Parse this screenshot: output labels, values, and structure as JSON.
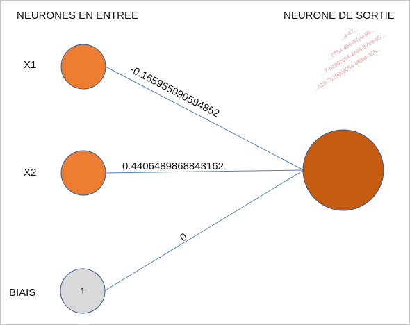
{
  "headings": {
    "inputs": "NEURONES EN ENTREE",
    "output": "NEURONE DE SORTIE"
  },
  "inputs": [
    {
      "label": "X1",
      "value": ""
    },
    {
      "label": "X2",
      "value": ""
    },
    {
      "label": "BIAIS",
      "value": "1"
    }
  ],
  "weights": [
    "-0.165955990594852",
    "0.4406489868843162",
    "0"
  ],
  "watermark": [
    "...4-47...",
    "...0754-466-87e9-95...",
    "...7-b290zc64-4666-87e9-95...",
    "...c18-7b290z8054-4f6b4-466..."
  ],
  "colors": {
    "input_node": "#ed7d31",
    "bias_node": "#d9d9d9",
    "output_node": "#c55a11",
    "edge": "#4f7fc0",
    "watermark": "#e08a8a"
  }
}
